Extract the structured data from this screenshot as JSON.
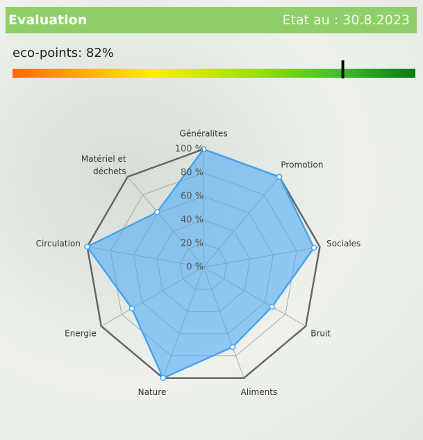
{
  "header": {
    "title": "Evaluation",
    "date": "Etat au : 30.8.2023"
  },
  "eco_points": {
    "label": "eco-points: 82%",
    "value": 82,
    "lim": [
      0,
      100
    ]
  },
  "chart_data": {
    "type": "radar",
    "categories": [
      "Généralites",
      "Promotion",
      "Sociales",
      "Bruit",
      "Aliments",
      "Nature",
      "Energie",
      "Circulation",
      "Matériel et\ndéchets"
    ],
    "values": [
      100,
      100,
      95,
      67,
      72,
      100,
      70,
      100,
      61
    ],
    "color": "#42a5f5",
    "rlim": [
      0,
      100
    ],
    "rticks": [
      {
        "value": 0,
        "label": "0 %"
      },
      {
        "value": 20,
        "label": "20 %"
      },
      {
        "value": 40,
        "label": "40 %"
      },
      {
        "value": 60,
        "label": "60 %"
      },
      {
        "value": 80,
        "label": "80 %"
      },
      {
        "value": 100,
        "label": "100 %"
      }
    ],
    "grid": true
  }
}
